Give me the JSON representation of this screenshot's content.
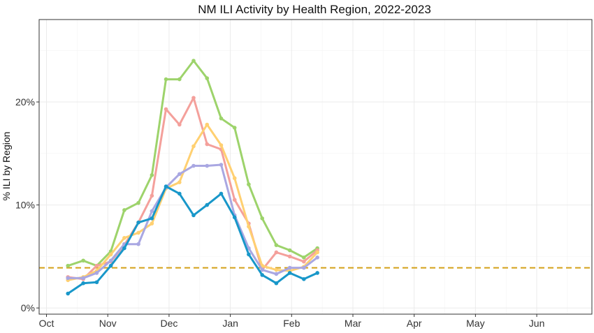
{
  "chart_data": {
    "type": "line",
    "title": "NM ILI Activity by Health Region, 2022-2023",
    "xlabel": "",
    "ylabel": "% ILI by Region",
    "x_ticks": [
      "Oct",
      "Nov",
      "Dec",
      "Jan",
      "Feb",
      "Mar",
      "Apr",
      "May",
      "Jun"
    ],
    "y_ticks": [
      "0%",
      "10%",
      "20%"
    ],
    "y_tick_values": [
      0,
      10,
      20
    ],
    "ylim": [
      -0.6,
      28.0
    ],
    "xlim": [
      -0.12,
      8.9
    ],
    "grid": true,
    "legend": "none",
    "baseline": {
      "value": 3.9,
      "color": "#d4a017",
      "style": "dashed"
    },
    "x": [
      0.35,
      0.6,
      0.82,
      1.05,
      1.27,
      1.5,
      1.72,
      1.95,
      2.17,
      2.4,
      2.62,
      2.85,
      3.07,
      3.3,
      3.52,
      3.75,
      3.97,
      4.2,
      4.42
    ],
    "series": [
      {
        "color": "#9dd36b",
        "values": [
          4.1,
          4.6,
          4.1,
          5.5,
          9.5,
          10.2,
          12.9,
          22.2,
          22.2,
          24.0,
          22.3,
          18.4,
          17.5,
          12.0,
          8.7,
          6.1,
          5.6,
          4.9,
          5.8
        ]
      },
      {
        "color": "#f4a09b",
        "values": [
          3.0,
          2.8,
          4.1,
          4.5,
          6.1,
          8.3,
          10.9,
          19.3,
          17.8,
          20.4,
          15.9,
          15.4,
          10.5,
          8.2,
          3.7,
          5.4,
          5.0,
          4.5,
          5.6
        ]
      },
      {
        "color": "#ffd071",
        "values": [
          2.7,
          3.0,
          3.6,
          5.2,
          6.8,
          7.3,
          8.2,
          11.6,
          12.2,
          15.7,
          17.8,
          15.8,
          12.6,
          7.9,
          4.1,
          3.7,
          3.6,
          4.0,
          5.4
        ]
      },
      {
        "color": "#a9a7e2",
        "values": [
          2.9,
          2.9,
          3.4,
          4.6,
          6.2,
          6.2,
          9.4,
          11.7,
          13.0,
          13.8,
          13.8,
          13.9,
          9.0,
          5.8,
          3.7,
          3.3,
          3.9,
          3.9,
          4.9
        ]
      },
      {
        "color": "#1897c9",
        "values": [
          1.4,
          2.4,
          2.5,
          4.1,
          5.8,
          8.3,
          8.7,
          11.8,
          11.1,
          9.0,
          10.0,
          11.1,
          8.8,
          5.2,
          3.2,
          2.4,
          3.4,
          2.8,
          3.4
        ]
      }
    ]
  }
}
